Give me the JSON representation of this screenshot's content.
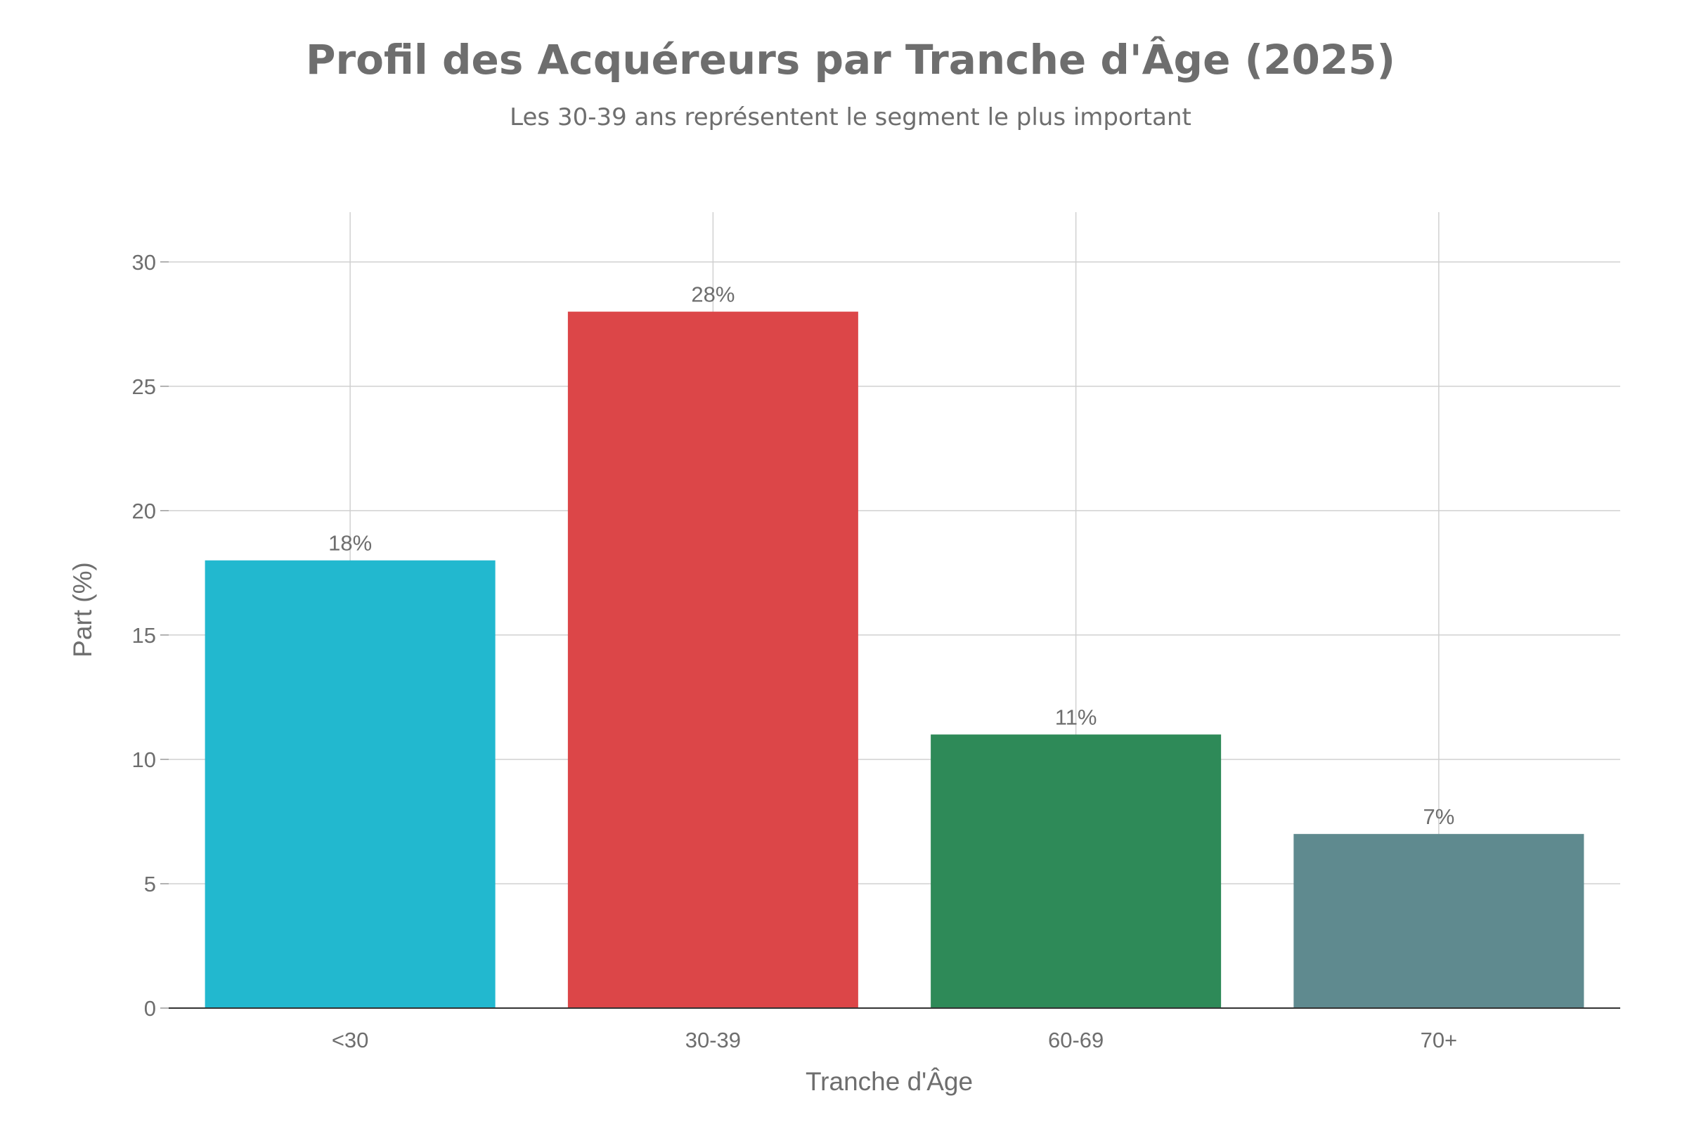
{
  "chart_data": {
    "type": "bar",
    "title": "Profil des Acquéreurs par Tranche d'Âge (2025)",
    "subtitle": "Les 30-39 ans représentent le segment le plus important",
    "xlabel": "Tranche d'Âge",
    "ylabel": "Part (%)",
    "categories": [
      "<30",
      "30-39",
      "60-69",
      "70+"
    ],
    "values": [
      18,
      28,
      11,
      7
    ],
    "value_labels": [
      "18%",
      "28%",
      "11%",
      "7%"
    ],
    "colors": [
      "#22b8cf",
      "#dc4648",
      "#2e8a58",
      "#5f8a8f"
    ],
    "ylim": [
      0,
      32
    ],
    "yticks": [
      0,
      5,
      10,
      15,
      20,
      25,
      30
    ],
    "grid": true,
    "legend": "none"
  }
}
